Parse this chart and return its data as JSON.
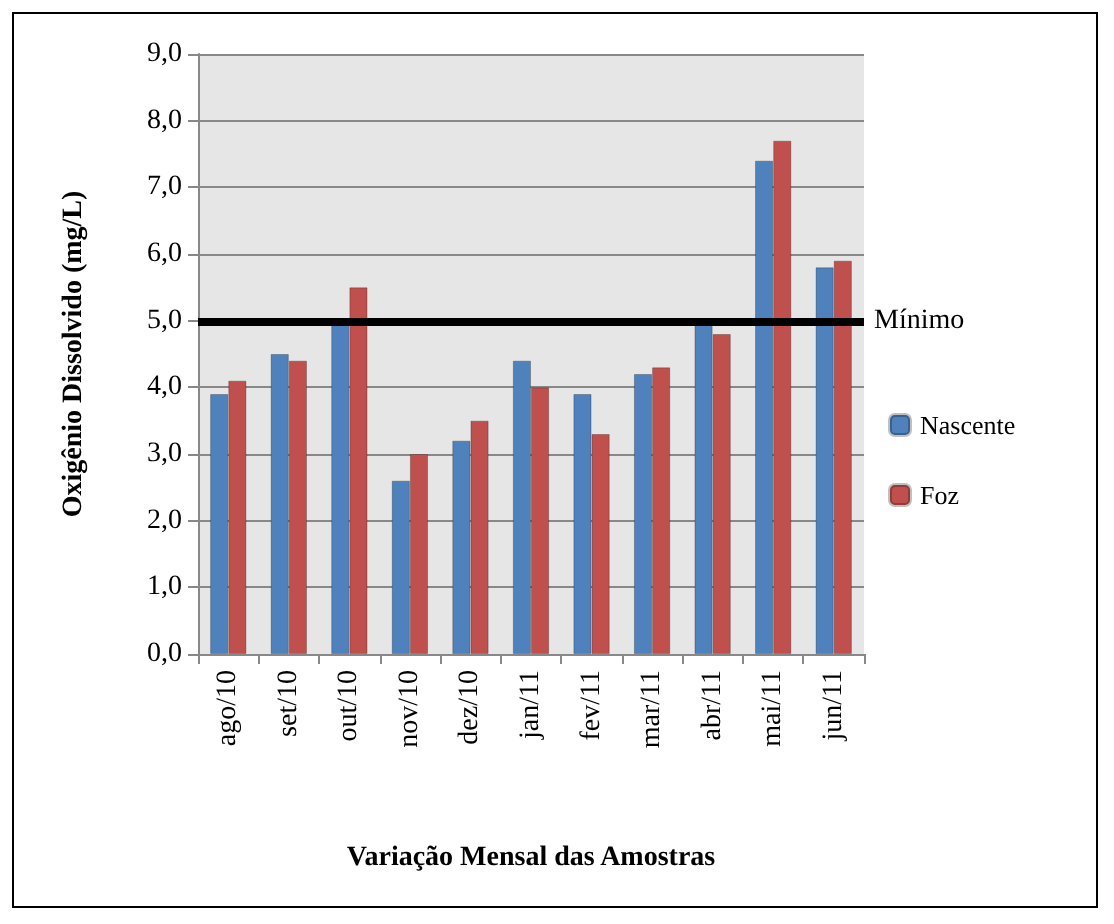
{
  "chart_data": {
    "type": "bar",
    "xlabel": "Variação Mensal das Amostras",
    "ylabel": "Oxigênio Dissolvido (mg/L)",
    "categories": [
      "ago/10",
      "set/10",
      "out/10",
      "nov/10",
      "dez/10",
      "jan/11",
      "fev/11",
      "mar/11",
      "abr/11",
      "mai/11",
      "jun/11"
    ],
    "series": [
      {
        "name": "Nascente",
        "color": "#4f81bd",
        "values": [
          3.9,
          4.5,
          5.0,
          2.6,
          3.2,
          4.4,
          3.9,
          4.2,
          5.0,
          7.4,
          5.8
        ]
      },
      {
        "name": "Foz",
        "color": "#c0504d",
        "values": [
          4.1,
          4.4,
          5.5,
          3.0,
          3.5,
          4.0,
          3.3,
          4.3,
          4.8,
          7.7,
          5.9
        ]
      }
    ],
    "ylim": [
      0,
      9
    ],
    "yticks": [
      {
        "value": 0,
        "label": "0,0"
      },
      {
        "value": 1,
        "label": "1,0"
      },
      {
        "value": 2,
        "label": "2,0"
      },
      {
        "value": 3,
        "label": "3,0"
      },
      {
        "value": 4,
        "label": "4,0"
      },
      {
        "value": 5,
        "label": "5,0"
      },
      {
        "value": 6,
        "label": "6,0"
      },
      {
        "value": 7,
        "label": "7,0"
      },
      {
        "value": 8,
        "label": "8,0"
      },
      {
        "value": 9,
        "label": "9,0"
      }
    ],
    "ref_lines": [
      {
        "axis": "y",
        "value": 5.0,
        "label": "Mínimo",
        "color": "#000000"
      }
    ],
    "grid": "y",
    "legend": "right"
  }
}
